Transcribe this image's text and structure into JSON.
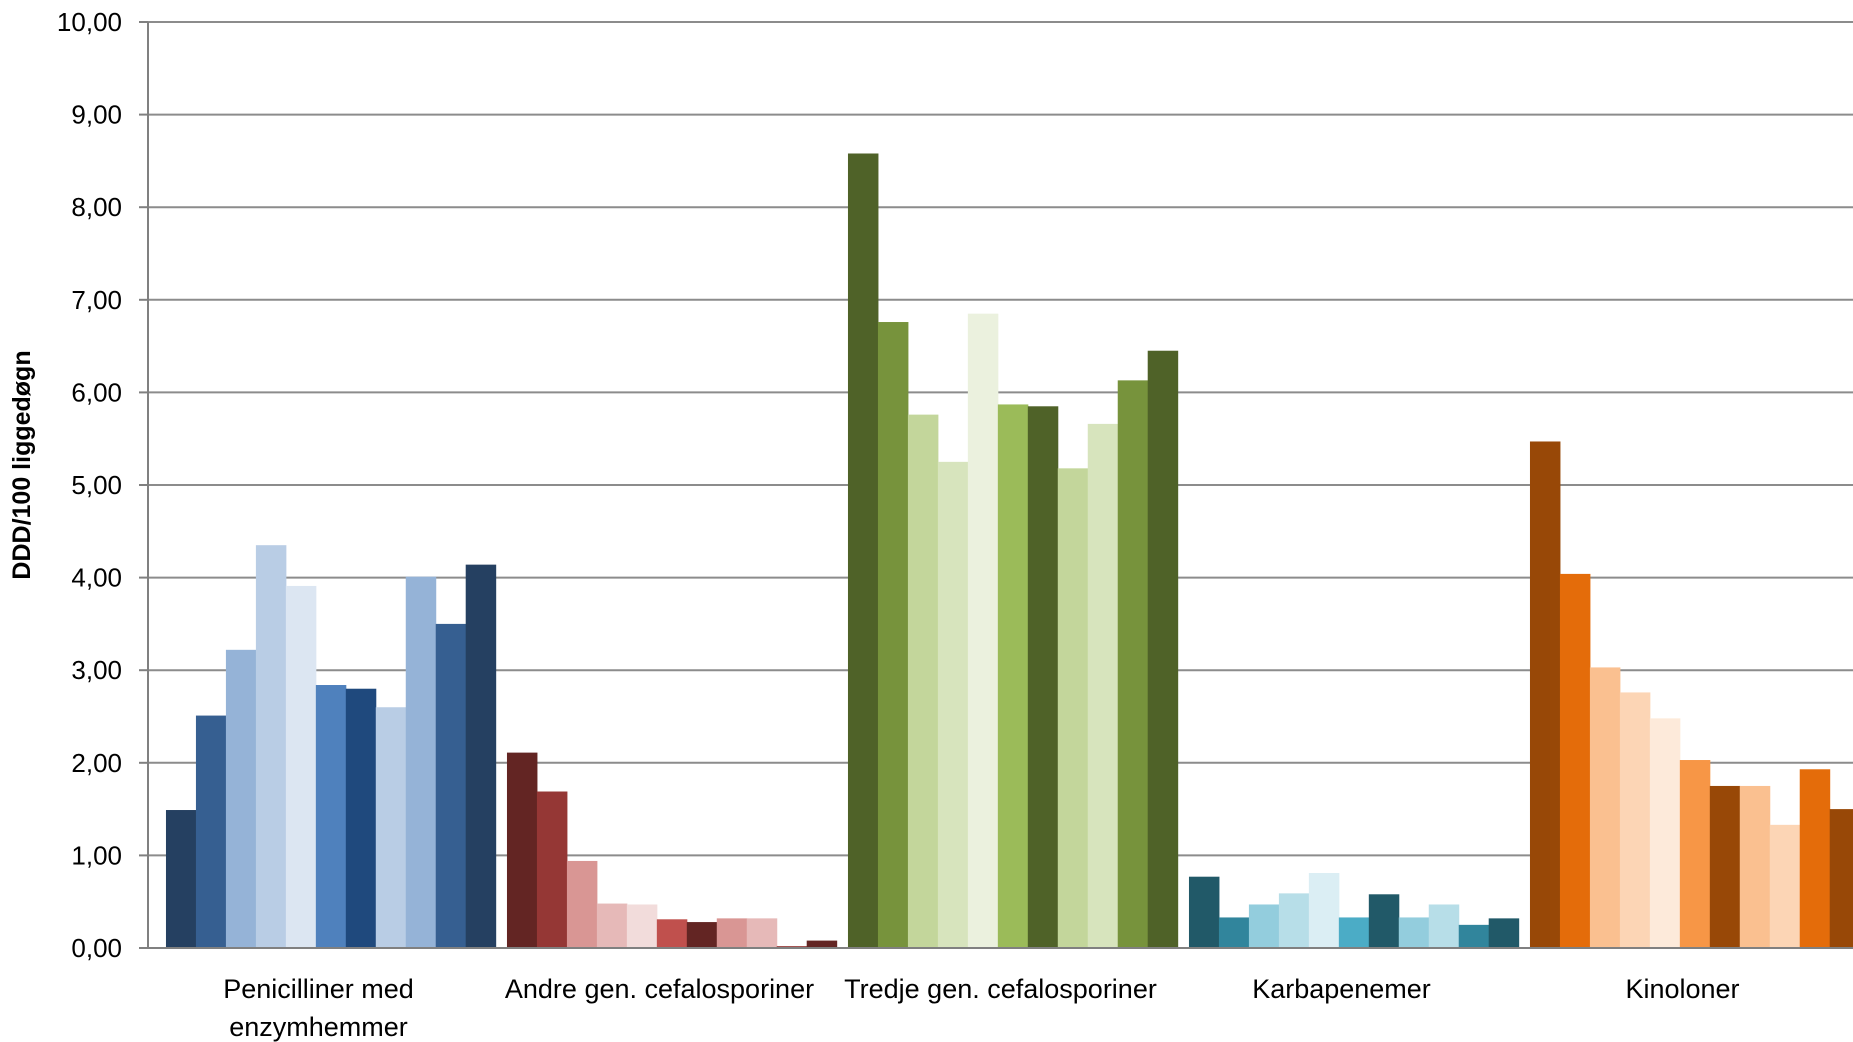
{
  "chart_data": {
    "type": "bar",
    "title": "",
    "xlabel": "",
    "ylabel": "DDD/100 liggedøgn",
    "ylim": [
      0,
      10
    ],
    "yticks": [
      "0,00",
      "1,00",
      "2,00",
      "3,00",
      "4,00",
      "5,00",
      "6,00",
      "7,00",
      "8,00",
      "9,00",
      "10,00"
    ],
    "grid": true,
    "legend": "none",
    "categories": [
      "Penicilliner med enzymhemmer",
      "Andre gen. cefalosporiner",
      "Tredje gen. cefalosporiner",
      "Karbapenemer",
      "Kinoloner"
    ],
    "category_label_lines": [
      [
        "Penicilliner med",
        "enzymhemmer"
      ],
      [
        "Andre gen. cefalosporiner"
      ],
      [
        "Tredje gen. cefalosporiner"
      ],
      [
        "Karbapenemer"
      ],
      [
        "Kinoloner"
      ]
    ],
    "groups": [
      {
        "values": [
          1.49,
          2.51,
          3.22,
          4.35,
          3.91,
          2.84,
          2.8,
          2.6,
          4.01,
          3.5,
          4.14
        ],
        "colors": [
          "#254061",
          "#365f91",
          "#95b3d7",
          "#b9cde5",
          "#dce6f2",
          "#4f81bd",
          "#1f497d",
          "#b9cde5",
          "#95b3d7",
          "#365f91",
          "#254061"
        ]
      },
      {
        "values": [
          2.11,
          1.69,
          0.94,
          0.48,
          0.47,
          0.31,
          0.28,
          0.32,
          0.32,
          0.02,
          0.08
        ],
        "colors": [
          "#632523",
          "#953735",
          "#d99694",
          "#e6b9b8",
          "#f2dcdb",
          "#c0504d",
          "#632523",
          "#d99694",
          "#e6b9b8",
          "#953735",
          "#632523"
        ]
      },
      {
        "values": [
          8.58,
          6.76,
          5.76,
          5.25,
          6.85,
          5.87,
          5.85,
          5.18,
          5.66,
          6.13,
          6.45
        ],
        "colors": [
          "#4f6228",
          "#77933c",
          "#c3d69b",
          "#d7e4bd",
          "#ebf1de",
          "#9bbb59",
          "#4f6228",
          "#c3d69b",
          "#d7e4bd",
          "#77933c",
          "#4f6228"
        ]
      },
      {
        "values": [
          0.77,
          0.33,
          0.47,
          0.59,
          0.81,
          0.33,
          0.58,
          0.33,
          0.47,
          0.25,
          0.32
        ],
        "colors": [
          "#215968",
          "#31859c",
          "#93cddd",
          "#b7dee8",
          "#dbeef4",
          "#4bacc6",
          "#215968",
          "#93cddd",
          "#b7dee8",
          "#31859c",
          "#215968"
        ]
      },
      {
        "values": [
          5.47,
          4.04,
          3.03,
          2.76,
          2.48,
          2.03,
          1.75,
          1.75,
          1.33,
          1.93,
          1.5
        ],
        "colors": [
          "#984807",
          "#e46c0a",
          "#fac090",
          "#fcd5b5",
          "#fdeada",
          "#f79646",
          "#984807",
          "#fac090",
          "#fcd5b5",
          "#e46c0a",
          "#984807"
        ]
      }
    ]
  }
}
